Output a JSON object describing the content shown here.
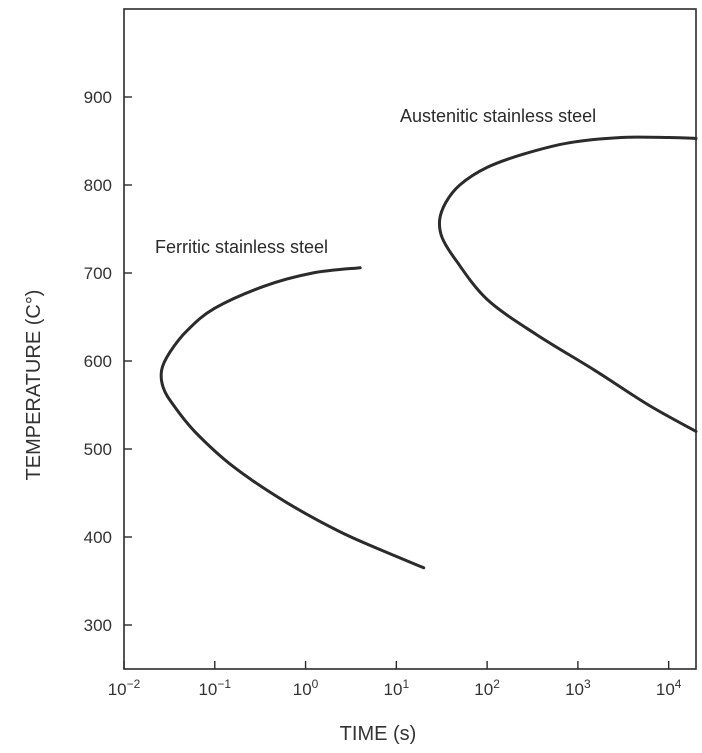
{
  "chart_data": {
    "type": "line",
    "xlabel": "TIME (s)",
    "ylabel": "TEMPERATURE (C°)",
    "x_scale": "log",
    "xlim": [
      0.01,
      20000
    ],
    "ylim": [
      250,
      1000
    ],
    "x_ticks": [
      {
        "base": "10",
        "exp": "−2",
        "value": 0.01
      },
      {
        "base": "10",
        "exp": "−1",
        "value": 0.1
      },
      {
        "base": "10",
        "exp": "0",
        "value": 1
      },
      {
        "base": "10",
        "exp": "1",
        "value": 10
      },
      {
        "base": "10",
        "exp": "2",
        "value": 100
      },
      {
        "base": "10",
        "exp": "3",
        "value": 1000
      },
      {
        "base": "10",
        "exp": "4",
        "value": 10000
      }
    ],
    "y_ticks": [
      300,
      400,
      500,
      600,
      700,
      800,
      900
    ],
    "grid": false,
    "series": [
      {
        "name": "Ferritic stainless steel",
        "x": [
          4.0,
          1.2,
          0.35,
          0.1,
          0.05,
          0.032,
          0.026,
          0.027,
          0.035,
          0.06,
          0.16,
          0.6,
          2.5,
          10,
          20
        ],
        "y": [
          706,
          700,
          685,
          660,
          635,
          610,
          590,
          570,
          550,
          520,
          480,
          440,
          405,
          378,
          365
        ]
      },
      {
        "name": "Austenitic stainless steel",
        "x": [
          20000,
          10000,
          3000,
          800,
          250,
          100,
          50,
          35,
          30,
          32,
          45,
          100,
          350,
          1500,
          6000,
          20000
        ],
        "y": [
          853,
          854,
          854,
          848,
          835,
          820,
          800,
          780,
          760,
          740,
          715,
          670,
          630,
          590,
          550,
          520
        ]
      }
    ]
  }
}
